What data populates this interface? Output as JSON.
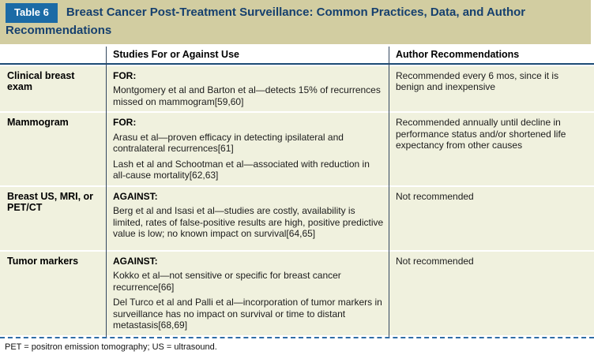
{
  "colors": {
    "badge_blue": "#1b6ba6",
    "title_band_tan": "#d2cda1",
    "title_navy": "#16406e",
    "row_background": "#f0f1de",
    "header_rule_navy": "#1c4b75",
    "column_divider": "#33475e",
    "dashed_rule_blue": "#2f6da5"
  },
  "table": {
    "tag": "Table 6",
    "title": "Breast Cancer Post-Treatment Surveillance: Common Practices, Data, and Author Recommendations",
    "columns": {
      "col1": "",
      "col2": "Studies For or Against Use",
      "col3": "Author Recommendations"
    },
    "rows": [
      {
        "label": "Clinical breast exam",
        "stance": "FOR:",
        "studies": [
          "Montgomery et al and Barton et al—detects 15% of recurrences missed on mammogram[59,60]"
        ],
        "recommendation": "Recommended every 6 mos, since it is benign and inexpensive"
      },
      {
        "label": "Mammogram",
        "stance": "FOR:",
        "studies": [
          "Arasu et al—proven efficacy in detecting ipsilateral and contralateral recurrences[61]",
          "Lash et al and Schootman et al—associated with reduction in all-cause mortality[62,63]"
        ],
        "recommendation": "Recommended annually until decline in performance status and/or shortened life expectancy from other causes"
      },
      {
        "label": "Breast US, MRI, or PET/CT",
        "stance": "AGAINST:",
        "studies": [
          "Berg et al and Isasi et al—studies are costly, availability is limited, rates of false-positive results are high, positive predictive value is low; no known impact on survival[64,65]"
        ],
        "recommendation": "Not recommended"
      },
      {
        "label": "Tumor markers",
        "stance": "AGAINST:",
        "studies": [
          "Kokko et al—not sensitive or specific for breast cancer recurrence[66]",
          "Del Turco et al and Palli et al—incorporation of tumor markers in surveillance has no impact on survival or time to distant metastasis[68,69]"
        ],
        "recommendation": "Not recommended"
      }
    ],
    "footnote": "PET = positron emission tomography; US = ultrasound."
  }
}
